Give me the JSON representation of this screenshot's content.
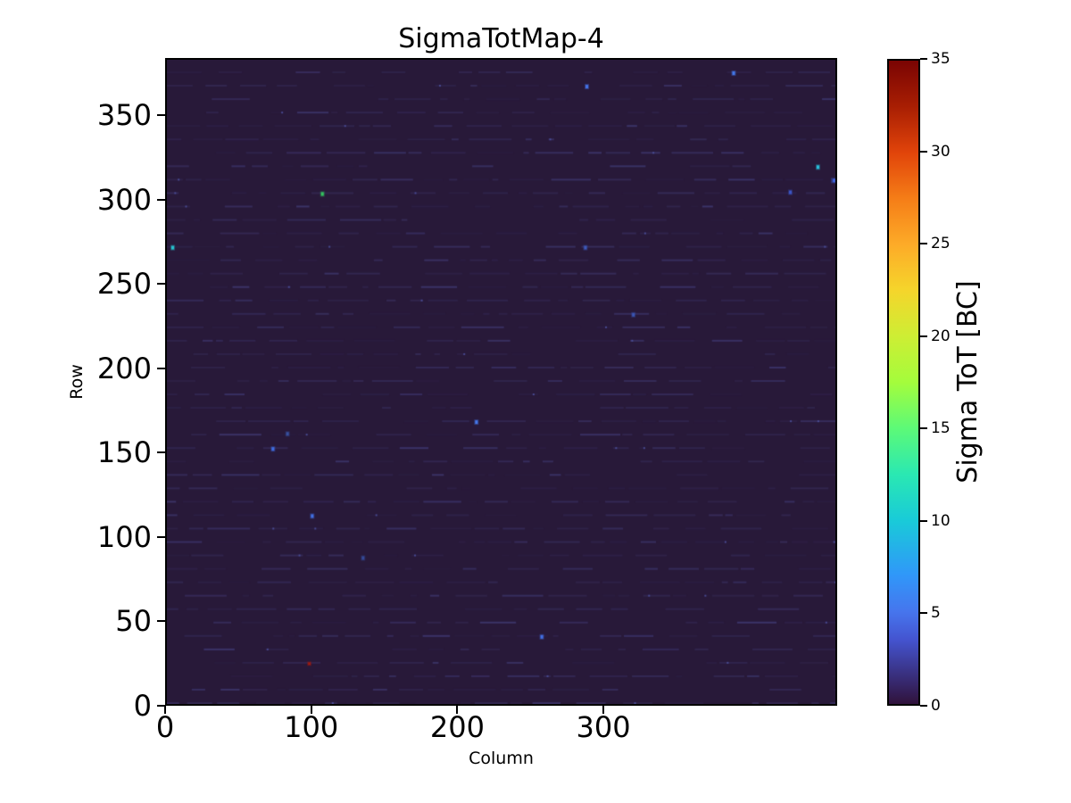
{
  "title": "SigmaTotMap-4",
  "plot": {
    "xlabel": "Column",
    "ylabel": "Row"
  },
  "colorbar": {
    "label": "Sigma ToT [BC]",
    "vmin": 0,
    "vmax": 35,
    "colormap": "turbo",
    "ticks": [
      0,
      5,
      10,
      15,
      20,
      25,
      30,
      35
    ],
    "gradient_stops": [
      {
        "t": 0.0,
        "c": "#30123b"
      },
      {
        "t": 0.1,
        "c": "#4454d0"
      },
      {
        "t": 0.143,
        "c": "#4675ed"
      },
      {
        "t": 0.2,
        "c": "#3097f9"
      },
      {
        "t": 0.286,
        "c": "#19cbd8"
      },
      {
        "t": 0.357,
        "c": "#2ae8b2"
      },
      {
        "t": 0.429,
        "c": "#5dfa77"
      },
      {
        "t": 0.5,
        "c": "#a4fc3c"
      },
      {
        "t": 0.571,
        "c": "#cdee34"
      },
      {
        "t": 0.643,
        "c": "#f5d52b"
      },
      {
        "t": 0.714,
        "c": "#fdab28"
      },
      {
        "t": 0.786,
        "c": "#f57d17"
      },
      {
        "t": 0.857,
        "c": "#e1440a"
      },
      {
        "t": 0.929,
        "c": "#a81e03"
      },
      {
        "t": 1.0,
        "c": "#7a0403"
      }
    ]
  },
  "chart_data": {
    "type": "heatmap",
    "title": "SigmaTotMap-4",
    "xlabel": "Column",
    "ylabel": "Row",
    "colorbar_label": "Sigma ToT [BC]",
    "xlim": [
      0,
      460
    ],
    "ylim": [
      0,
      384
    ],
    "zlim": [
      0,
      35
    ],
    "x_ticks": [
      0,
      100,
      200,
      300
    ],
    "y_ticks": [
      0,
      50,
      100,
      150,
      200,
      250,
      300,
      350
    ],
    "colorbar_ticks": [
      0,
      5,
      10,
      15,
      20,
      25,
      30,
      35
    ],
    "background_description": "Nearly uniform Sigma ToT ~0-2 BC (dark purple) with faint slightly-brighter dashed row bands every 8 rows",
    "hot_pixels": [
      {
        "col": 4,
        "row": 272,
        "sigma_tot": 9,
        "color": "#27c3cf"
      },
      {
        "col": 107,
        "row": 304,
        "sigma_tot": 13,
        "color": "#34c45e"
      },
      {
        "col": 289,
        "row": 368,
        "sigma_tot": 5,
        "color": "#4472e8"
      },
      {
        "col": 390,
        "row": 376,
        "sigma_tot": 5,
        "color": "#4479ec"
      },
      {
        "col": 448,
        "row": 320,
        "sigma_tot": 9,
        "color": "#29bfdb"
      },
      {
        "col": 459,
        "row": 312,
        "sigma_tot": 5,
        "color": "#3f63da"
      },
      {
        "col": 429,
        "row": 305,
        "sigma_tot": 4,
        "color": "#3c55c4"
      },
      {
        "col": 213,
        "row": 168,
        "sigma_tot": 5,
        "color": "#4577e9"
      },
      {
        "col": 73,
        "row": 152,
        "sigma_tot": 5,
        "color": "#406ee2"
      },
      {
        "col": 83,
        "row": 161,
        "sigma_tot": 3,
        "color": "#37509f"
      },
      {
        "col": 100,
        "row": 112,
        "sigma_tot": 5,
        "color": "#4170e4"
      },
      {
        "col": 135,
        "row": 87,
        "sigma_tot": 3,
        "color": "#354a98"
      },
      {
        "col": 258,
        "row": 40,
        "sigma_tot": 5,
        "color": "#4270e6"
      },
      {
        "col": 98,
        "row": 24,
        "sigma_tot": 32,
        "color": "#9e1a10"
      },
      {
        "col": 321,
        "row": 232,
        "sigma_tot": 3,
        "color": "#3a55b2"
      },
      {
        "col": 288,
        "row": 272,
        "sigma_tot": 3,
        "color": "#3d59bb"
      }
    ],
    "texture": {
      "base_color": "#281939",
      "stripe_colors": [
        "#2e2148",
        "#332853",
        "#3a3162",
        "#403a74"
      ],
      "bright_speck_color": "#4d52a0",
      "stripe_spacing_rows": 8,
      "seed": 1337
    }
  }
}
